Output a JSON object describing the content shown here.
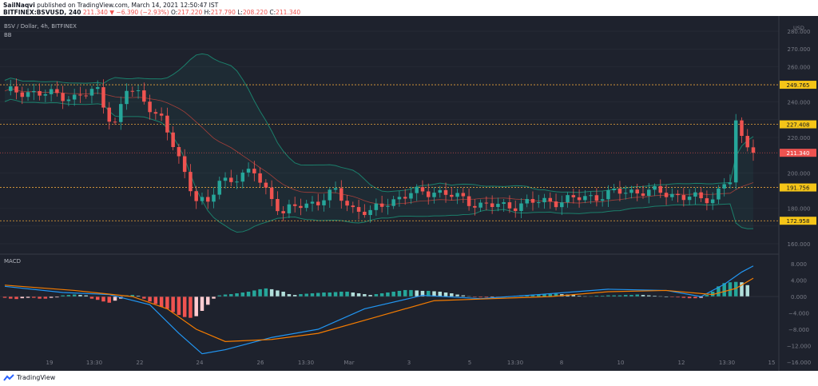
{
  "header": {
    "author": "SailNaqvi",
    "published": "published on TradingView.com, March 14, 2021 12:50:47 IST",
    "symbol": "BITFINEX:BSVUSD, 240",
    "last": "211.340",
    "change": "▼ −6.390 (−2.93%)",
    "o_label": "O:",
    "o": "217.220",
    "h_label": "H:",
    "h": "217.790",
    "l_label": "L:",
    "l": "208.220",
    "c_label": "C:",
    "c": "211.340"
  },
  "legend": {
    "main": "BSV / Dollar, 4h, BITFINEX",
    "bb": "BB",
    "macd": "MACD"
  },
  "footer": {
    "brand": "TradingView"
  },
  "colors": {
    "background": "#1e222d",
    "up": "#26a69a",
    "down": "#ef5350",
    "bb": "#1b7f6b",
    "level": "#e8a33b",
    "macd": "#2196f3",
    "signal": "#f57c00"
  },
  "chart_data": [
    {
      "type": "candlestick",
      "title": "BSV / Dollar, 4h, BITFINEX",
      "currency": "USD",
      "ylim": [
        155,
        285
      ],
      "y_ticks": [
        "280.000",
        "270.000",
        "260.000",
        "240.000",
        "230.000",
        "220.000",
        "200.000",
        "180.000",
        "170.000",
        "160.000"
      ],
      "x_ticks": [
        "19",
        "13:30",
        "22",
        "24",
        "26",
        "13:30",
        "Mar",
        "3",
        "5",
        "13:30",
        "8",
        "10",
        "12",
        "13:30",
        "15"
      ],
      "levels": [
        {
          "label": "249.765",
          "value": 249.765
        },
        {
          "label": "227.408",
          "value": 227.408
        },
        {
          "label": "191.756",
          "value": 191.756
        },
        {
          "label": "172.958",
          "value": 172.958
        }
      ],
      "last_price": {
        "label": "211.340",
        "value": 211.34
      },
      "approx_close_path": [
        {
          "x": 0,
          "y": 245
        },
        {
          "x": 4,
          "y": 246
        },
        {
          "x": 8,
          "y": 244
        },
        {
          "x": 12,
          "y": 243
        },
        {
          "x": 16,
          "y": 246
        },
        {
          "x": 18,
          "y": 232
        },
        {
          "x": 19,
          "y": 228
        },
        {
          "x": 21,
          "y": 247
        },
        {
          "x": 23,
          "y": 244
        },
        {
          "x": 25,
          "y": 238
        },
        {
          "x": 27,
          "y": 230
        },
        {
          "x": 29,
          "y": 215
        },
        {
          "x": 31,
          "y": 200
        },
        {
          "x": 33,
          "y": 186
        },
        {
          "x": 35,
          "y": 182
        },
        {
          "x": 37,
          "y": 195
        },
        {
          "x": 40,
          "y": 198
        },
        {
          "x": 43,
          "y": 200
        },
        {
          "x": 46,
          "y": 186
        },
        {
          "x": 48,
          "y": 177
        },
        {
          "x": 51,
          "y": 182
        },
        {
          "x": 54,
          "y": 184
        },
        {
          "x": 57,
          "y": 189
        },
        {
          "x": 60,
          "y": 180
        },
        {
          "x": 63,
          "y": 177
        },
        {
          "x": 66,
          "y": 184
        },
        {
          "x": 70,
          "y": 188
        },
        {
          "x": 74,
          "y": 190
        },
        {
          "x": 78,
          "y": 186
        },
        {
          "x": 82,
          "y": 182
        },
        {
          "x": 86,
          "y": 181
        },
        {
          "x": 90,
          "y": 183
        },
        {
          "x": 94,
          "y": 184
        },
        {
          "x": 98,
          "y": 185
        },
        {
          "x": 102,
          "y": 187
        },
        {
          "x": 106,
          "y": 189
        },
        {
          "x": 110,
          "y": 190
        },
        {
          "x": 114,
          "y": 188
        },
        {
          "x": 118,
          "y": 187
        },
        {
          "x": 120,
          "y": 184
        },
        {
          "x": 122,
          "y": 186
        },
        {
          "x": 124,
          "y": 195
        },
        {
          "x": 125,
          "y": 196
        },
        {
          "x": 126,
          "y": 227
        },
        {
          "x": 127,
          "y": 218
        },
        {
          "x": 128,
          "y": 216
        },
        {
          "x": 129,
          "y": 211
        }
      ]
    },
    {
      "type": "macd",
      "title": "MACD",
      "ylim": [
        -17,
        10
      ],
      "y_ticks": [
        "8.000",
        "4.000",
        "0.000",
        "−4.000",
        "−8.000",
        "−12.000",
        "−16.000"
      ],
      "macd": [
        {
          "x": 0,
          "y": 2.5
        },
        {
          "x": 10,
          "y": 1
        },
        {
          "x": 18,
          "y": 0.5
        },
        {
          "x": 25,
          "y": -2
        },
        {
          "x": 30,
          "y": -9
        },
        {
          "x": 34,
          "y": -14
        },
        {
          "x": 38,
          "y": -13
        },
        {
          "x": 46,
          "y": -10
        },
        {
          "x": 54,
          "y": -8
        },
        {
          "x": 62,
          "y": -3
        },
        {
          "x": 72,
          "y": 0.3
        },
        {
          "x": 82,
          "y": -0.5
        },
        {
          "x": 92,
          "y": 0.5
        },
        {
          "x": 104,
          "y": 1.8
        },
        {
          "x": 114,
          "y": 1.5
        },
        {
          "x": 120,
          "y": 0
        },
        {
          "x": 124,
          "y": 3
        },
        {
          "x": 127,
          "y": 6
        },
        {
          "x": 129,
          "y": 7.5
        }
      ],
      "signal": [
        {
          "x": 0,
          "y": 2.8
        },
        {
          "x": 12,
          "y": 1.5
        },
        {
          "x": 22,
          "y": 0
        },
        {
          "x": 28,
          "y": -3
        },
        {
          "x": 33,
          "y": -8
        },
        {
          "x": 38,
          "y": -11
        },
        {
          "x": 46,
          "y": -10.5
        },
        {
          "x": 54,
          "y": -9
        },
        {
          "x": 64,
          "y": -5
        },
        {
          "x": 74,
          "y": -1
        },
        {
          "x": 84,
          "y": -0.5
        },
        {
          "x": 94,
          "y": 0
        },
        {
          "x": 104,
          "y": 1.2
        },
        {
          "x": 114,
          "y": 1.5
        },
        {
          "x": 122,
          "y": 0.5
        },
        {
          "x": 126,
          "y": 2
        },
        {
          "x": 129,
          "y": 4.5
        }
      ],
      "histogram": [
        -0.3,
        -0.5,
        -0.6,
        -0.4,
        -0.3,
        -0.3,
        -0.5,
        -0.5,
        -0.3,
        -0.2,
        0.3,
        0.4,
        0.5,
        0.4,
        0.3,
        -0.5,
        -0.8,
        -1.2,
        -1.5,
        -1.0,
        -0.5,
        0.3,
        0.4,
        0.2,
        -0.5,
        -1.2,
        -1.8,
        -2.5,
        -3.0,
        -3.8,
        -4.5,
        -5.0,
        -5.2,
        -4.8,
        -3.5,
        -2.0,
        -0.5,
        0.3,
        0.5,
        0.6,
        0.8,
        1.0,
        1.2,
        1.5,
        1.8,
        2.0,
        1.8,
        1.5,
        1.2,
        0.6,
        0.4,
        0.6,
        0.7,
        0.8,
        0.9,
        1.0,
        1.0,
        1.1,
        1.2,
        1.2,
        1.0,
        0.8,
        0.6,
        0.4,
        0.6,
        0.8,
        1.0,
        1.2,
        1.4,
        1.6,
        1.6,
        1.5,
        1.4,
        1.4,
        1.3,
        1.2,
        1.0,
        0.8,
        0.5,
        0.3,
        0.1,
        -0.1,
        -0.2,
        -0.2,
        -0.1,
        -0.1,
        0.0,
        0.1,
        0.2,
        0.3,
        0.4,
        0.5,
        0.5,
        0.6,
        0.6,
        0.7,
        0.6,
        0.5,
        0.4,
        0.2,
        0.1,
        0.1,
        0.2,
        0.2,
        0.3,
        0.3,
        0.3,
        0.4,
        0.4,
        0.5,
        0.4,
        0.3,
        0.2,
        0.1,
        0.0,
        -0.1,
        -0.2,
        -0.3,
        -0.4,
        -0.4,
        -0.3,
        0.4,
        1.2,
        2.5,
        3.3,
        3.5,
        3.6,
        3.5,
        2.8
      ]
    }
  ]
}
